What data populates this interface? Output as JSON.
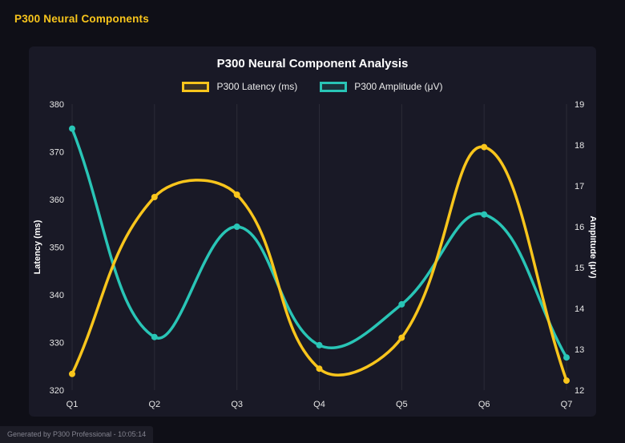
{
  "header": {
    "title": "P300 Neural Components"
  },
  "footer": {
    "text": "Generated by P300 Professional - 10:05:14"
  },
  "chart_data": {
    "type": "line",
    "title": "P300 Neural Component Analysis",
    "categories": [
      "Q1",
      "Q2",
      "Q3",
      "Q4",
      "Q5",
      "Q6",
      "Q7"
    ],
    "series": [
      {
        "name": "P300 Latency (ms)",
        "axis": "left",
        "color": "#f8c51c",
        "values": [
          323.4,
          360.5,
          361,
          324.5,
          331,
          371,
          322
        ]
      },
      {
        "name": "P300 Amplitude (μV)",
        "axis": "right",
        "color": "#29c5b6",
        "values": [
          18.4,
          13.3,
          16.0,
          13.1,
          14.1,
          16.3,
          12.8
        ]
      }
    ],
    "left_axis": {
      "label": "Latency (ms)",
      "min": 320,
      "max": 380,
      "step": 10
    },
    "right_axis": {
      "label": "Amplitude (μV)",
      "min": 12,
      "max": 19,
      "step": 1
    },
    "legend_position": "top",
    "grid": "vertical",
    "smooth": true
  },
  "colors": {
    "page_bg": "#0f0f17",
    "panel_bg": "#191926",
    "accent_yellow": "#f8c51c",
    "accent_teal": "#29c5b6",
    "grid": "rgba(255,255,255,0.08)",
    "tick_text": "#e6e6e6"
  }
}
